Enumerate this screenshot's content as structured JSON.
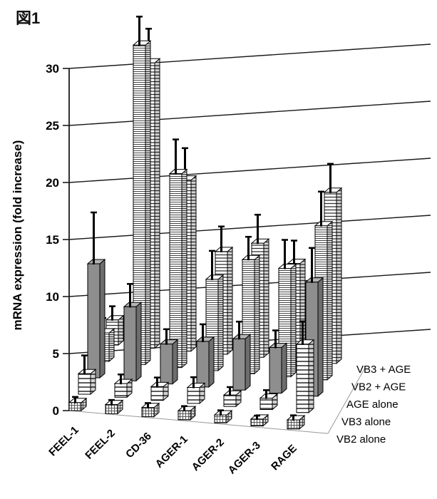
{
  "figure_label": "図1",
  "chart_data": {
    "type": "bar3d",
    "title": "",
    "ylabel": "mRNA expression (fold increase)",
    "xlabel": "",
    "ylim": [
      0,
      30
    ],
    "yticks": [
      0,
      5,
      10,
      15,
      20,
      25,
      30
    ],
    "grid": true,
    "legend_position": "depth-axis-right",
    "categories": [
      "FEEL-1",
      "FEEL-2",
      "CD-36",
      "AGER-1",
      "AGER-2",
      "AGER-3",
      "RAGE"
    ],
    "series": [
      {
        "name": "VB2 alone",
        "pattern": "grid",
        "values": [
          0.7,
          0.8,
          0.8,
          0.8,
          0.7,
          0.6,
          0.8
        ],
        "errors": [
          0.5,
          0.4,
          0.4,
          0.4,
          0.4,
          0.3,
          0.4
        ]
      },
      {
        "name": "VB3 alone",
        "pattern": "hstripe-wide",
        "values": [
          1.8,
          1.2,
          1.2,
          1.4,
          1.0,
          1.0,
          6.0
        ],
        "errors": [
          1.6,
          0.8,
          0.8,
          0.9,
          0.7,
          0.7,
          2.0
        ]
      },
      {
        "name": "AGE alone",
        "pattern": "solid",
        "values": [
          10.0,
          6.5,
          3.5,
          4.0,
          4.5,
          4.0,
          10.0
        ],
        "errors": [
          4.5,
          2.0,
          1.3,
          1.5,
          1.5,
          1.5,
          3.0
        ]
      },
      {
        "name": "VB2 + AGE",
        "pattern": "hstripe-fine",
        "values": [
          2.5,
          28.0,
          17.0,
          8.0,
          10.0,
          9.5,
          13.5
        ],
        "errors": [
          1.3,
          2.5,
          3.0,
          2.5,
          2.0,
          2.5,
          3.0
        ]
      },
      {
        "name": "VB3 + AGE",
        "pattern": "hstripe-med",
        "values": [
          2.2,
          25.0,
          15.0,
          9.0,
          10.0,
          8.5,
          15.0
        ],
        "errors": [
          1.2,
          3.0,
          2.8,
          2.2,
          2.5,
          2.0,
          2.5
        ]
      }
    ]
  },
  "colors": {
    "bar_solid_front": "#8e8e8e",
    "bar_solid_top": "#b4b4b4",
    "bar_solid_side": "#6d6d6d",
    "axis": "#1a1a1a",
    "floor_edge": "#999999"
  }
}
